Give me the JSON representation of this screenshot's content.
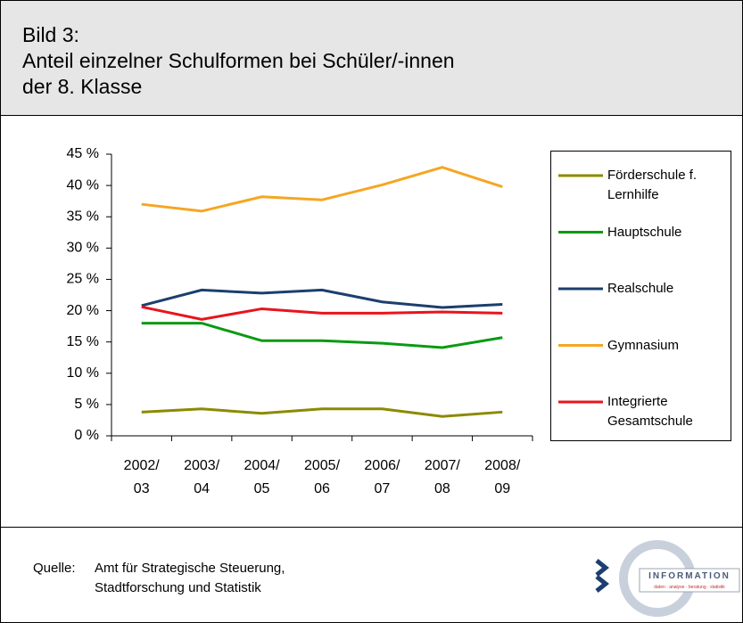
{
  "header": {
    "title": "Bild 3:\nAnteil einzelner Schulformen bei Schüler/-innen\nder 8. Klasse"
  },
  "chart_data": {
    "type": "line",
    "categories": [
      "2002/\n03",
      "2003/\n04",
      "2004/\n05",
      "2005/\n06",
      "2006/\n07",
      "2007/\n08",
      "2008/\n09"
    ],
    "series": [
      {
        "name": "Förderschule f.\nLernhilfe",
        "color": "#8c8a00",
        "values": [
          3.8,
          4.3,
          3.6,
          4.3,
          4.3,
          3.1,
          3.8
        ]
      },
      {
        "name": "Hauptschule",
        "color": "#0a9a12",
        "values": [
          18.0,
          18.0,
          15.2,
          15.2,
          14.8,
          14.1,
          15.7
        ]
      },
      {
        "name": "Realschule",
        "color": "#1b3f6e",
        "values": [
          20.8,
          23.3,
          22.8,
          23.3,
          21.4,
          20.5,
          21.0
        ]
      },
      {
        "name": "Gymnasium",
        "color": "#f5a623",
        "values": [
          37.0,
          35.9,
          38.2,
          37.7,
          40.1,
          42.9,
          39.8
        ]
      },
      {
        "name": "Integrierte\nGesamtschule",
        "color": "#e8141c",
        "values": [
          20.6,
          18.6,
          20.3,
          19.6,
          19.6,
          19.8,
          19.6
        ]
      }
    ],
    "ylim": [
      0,
      45
    ],
    "yticks": [
      {
        "value": 0,
        "label": "0 %"
      },
      {
        "value": 5,
        "label": "5 %"
      },
      {
        "value": 10,
        "label": "10 %"
      },
      {
        "value": 15,
        "label": "15 %"
      },
      {
        "value": 20,
        "label": "20 %"
      },
      {
        "value": 25,
        "label": "25 %"
      },
      {
        "value": 30,
        "label": "30 %"
      },
      {
        "value": 35,
        "label": "35 %"
      },
      {
        "value": 40,
        "label": "40 %"
      },
      {
        "value": 45,
        "label": "45 %"
      }
    ],
    "grid": false,
    "legend": "right"
  },
  "footer": {
    "source_label": "Quelle:",
    "source": "Amt für Strategische Steuerung,\nStadtforschung und Statistik",
    "logo": "INFORMATION",
    "logo_tagline": "daten · analyse · beratung · statistik"
  }
}
